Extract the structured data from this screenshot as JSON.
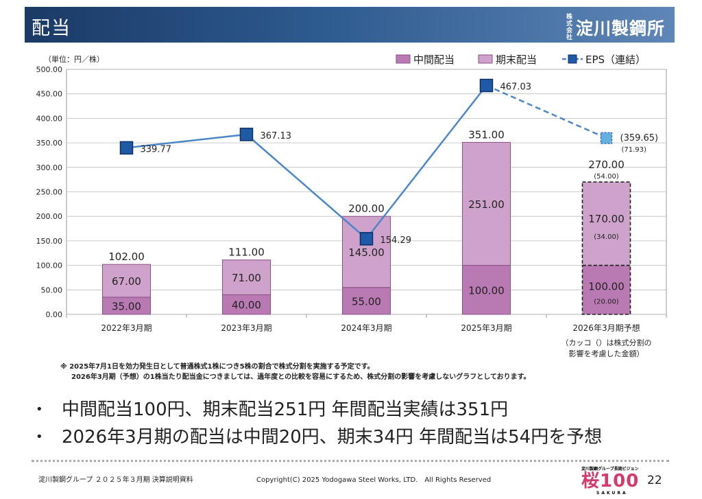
{
  "header": {
    "title": "配当",
    "logo_small": "株式会社",
    "logo_main": "淀川製鋼所"
  },
  "colors": {
    "interim": "#b979b2",
    "year_end": "#cea2cb",
    "eps_line": "#4a86c8",
    "eps_marker": "#1f5aa6",
    "eps_forecast_marker": "#66b0e0"
  },
  "chart_data": {
    "type": "bar",
    "unit_label": "（単位：円／株）",
    "categories": [
      "2022年3月期",
      "2023年3月期",
      "2024年3月期",
      "2025年3月期",
      "2026年3月期予想"
    ],
    "category_note": "（カッコ（）は株式分割の\n影響を考慮した金額）",
    "ylim": [
      0,
      500
    ],
    "yticks": [
      "0.00",
      "50.00",
      "100.00",
      "150.00",
      "200.00",
      "250.00",
      "300.00",
      "350.00",
      "400.00",
      "450.00",
      "500.00"
    ],
    "legend": [
      "中間配当",
      "期末配当",
      "EPS（連結）"
    ],
    "series": [
      {
        "name": "中間配当",
        "values": [
          35,
          40,
          55,
          100,
          100
        ],
        "labels": [
          "35.00",
          "40.00",
          "55.00",
          "100.00",
          "100.00"
        ]
      },
      {
        "name": "期末配当",
        "values": [
          67,
          71,
          145,
          251,
          170
        ],
        "labels": [
          "67.00",
          "71.00",
          "145.00",
          "251.00",
          "170.00"
        ]
      },
      {
        "name": "EPS（連結）",
        "values": [
          339.77,
          367.13,
          154.29,
          467.03,
          359.65
        ],
        "labels": [
          "339.77",
          "367.13",
          "154.29",
          "467.03",
          "(359.65)"
        ]
      }
    ],
    "totals": [
      "102.00",
      "111.00",
      "200.00",
      "351.00",
      "270.00"
    ],
    "forecast_split_labels": {
      "total": "(54.00)",
      "interim": "(20.00)",
      "year_end": "(34.00)",
      "eps": "(71.93)"
    }
  },
  "notes": [
    "※ 2025年7月1日を効力発生日として普通株式1株につき5株の割合で株式分割を実施する予定です。",
    "2026年3月期（予想）の1株当たり配当金につきましては、過年度との比較を容易にするため、株式分割の影響を考慮しないグラフとしております。"
  ],
  "bullets": [
    "中間配当100円、期末配当251円 年間配当実績は351円",
    "2026年3月期の配当は中間20円、期末34円 年間配当は54円を予想"
  ],
  "footer": {
    "left": "淀川製鋼グループ ２０２５年３月期 決算説明資料",
    "copyright": "Copyright(C) 2025 Yodogawa Steel Works, LTD.　All Rights Reserved",
    "vision_tag": "淀川製鋼グループ長期ビジョン",
    "vision_word": "桜",
    "vision_num": "100",
    "vision_sub": "SAKURA",
    "page": "22"
  }
}
